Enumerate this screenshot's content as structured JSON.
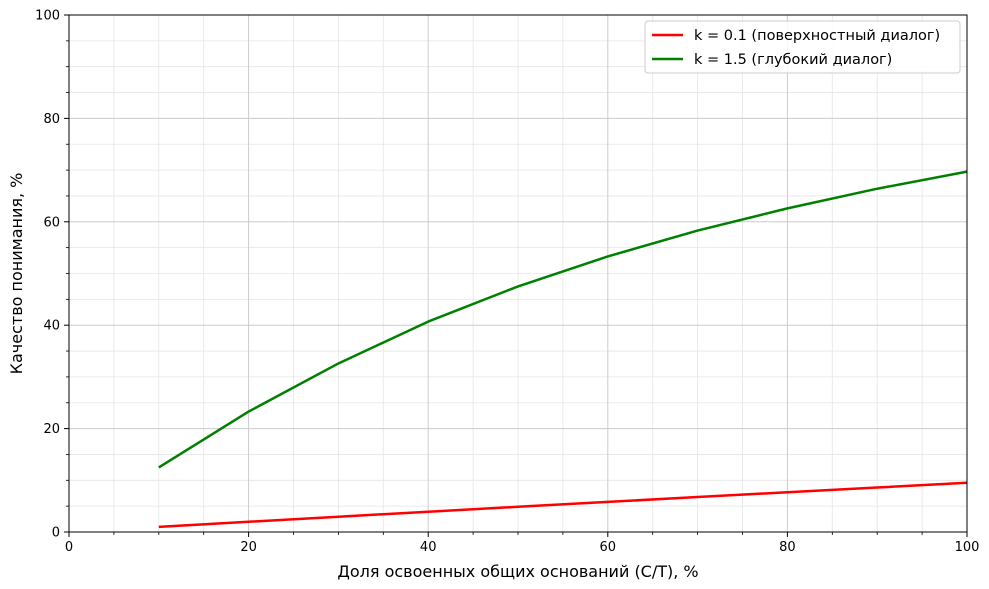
{
  "chart_data": {
    "type": "line",
    "title": "",
    "xlabel": "Доля освоенных общих оснований (C/T), %",
    "ylabel": "Качество понимания, %",
    "xlim": [
      0,
      100
    ],
    "ylim": [
      0,
      100
    ],
    "xticks": [
      "0",
      "20",
      "40",
      "60",
      "80",
      "100"
    ],
    "yticks": [
      "0",
      "20",
      "40",
      "60",
      "80",
      "100"
    ],
    "grid": true,
    "minor_grid": true,
    "legend_position": "top-right",
    "x": [
      10,
      20,
      30,
      40,
      50,
      60,
      70,
      80,
      90,
      100
    ],
    "series": [
      {
        "name": "k = 0.1 (поверхностный диалог)",
        "color": "#ff0000",
        "values": [
          0.99,
          1.98,
          2.96,
          3.92,
          4.88,
          5.82,
          6.76,
          7.69,
          8.61,
          9.52
        ]
      },
      {
        "name": "k = 1.5 (глубокий диалог)",
        "color": "#008000",
        "values": [
          12.5,
          23.3,
          32.6,
          40.7,
          47.5,
          53.3,
          58.3,
          62.6,
          66.4,
          69.7
        ]
      }
    ]
  }
}
